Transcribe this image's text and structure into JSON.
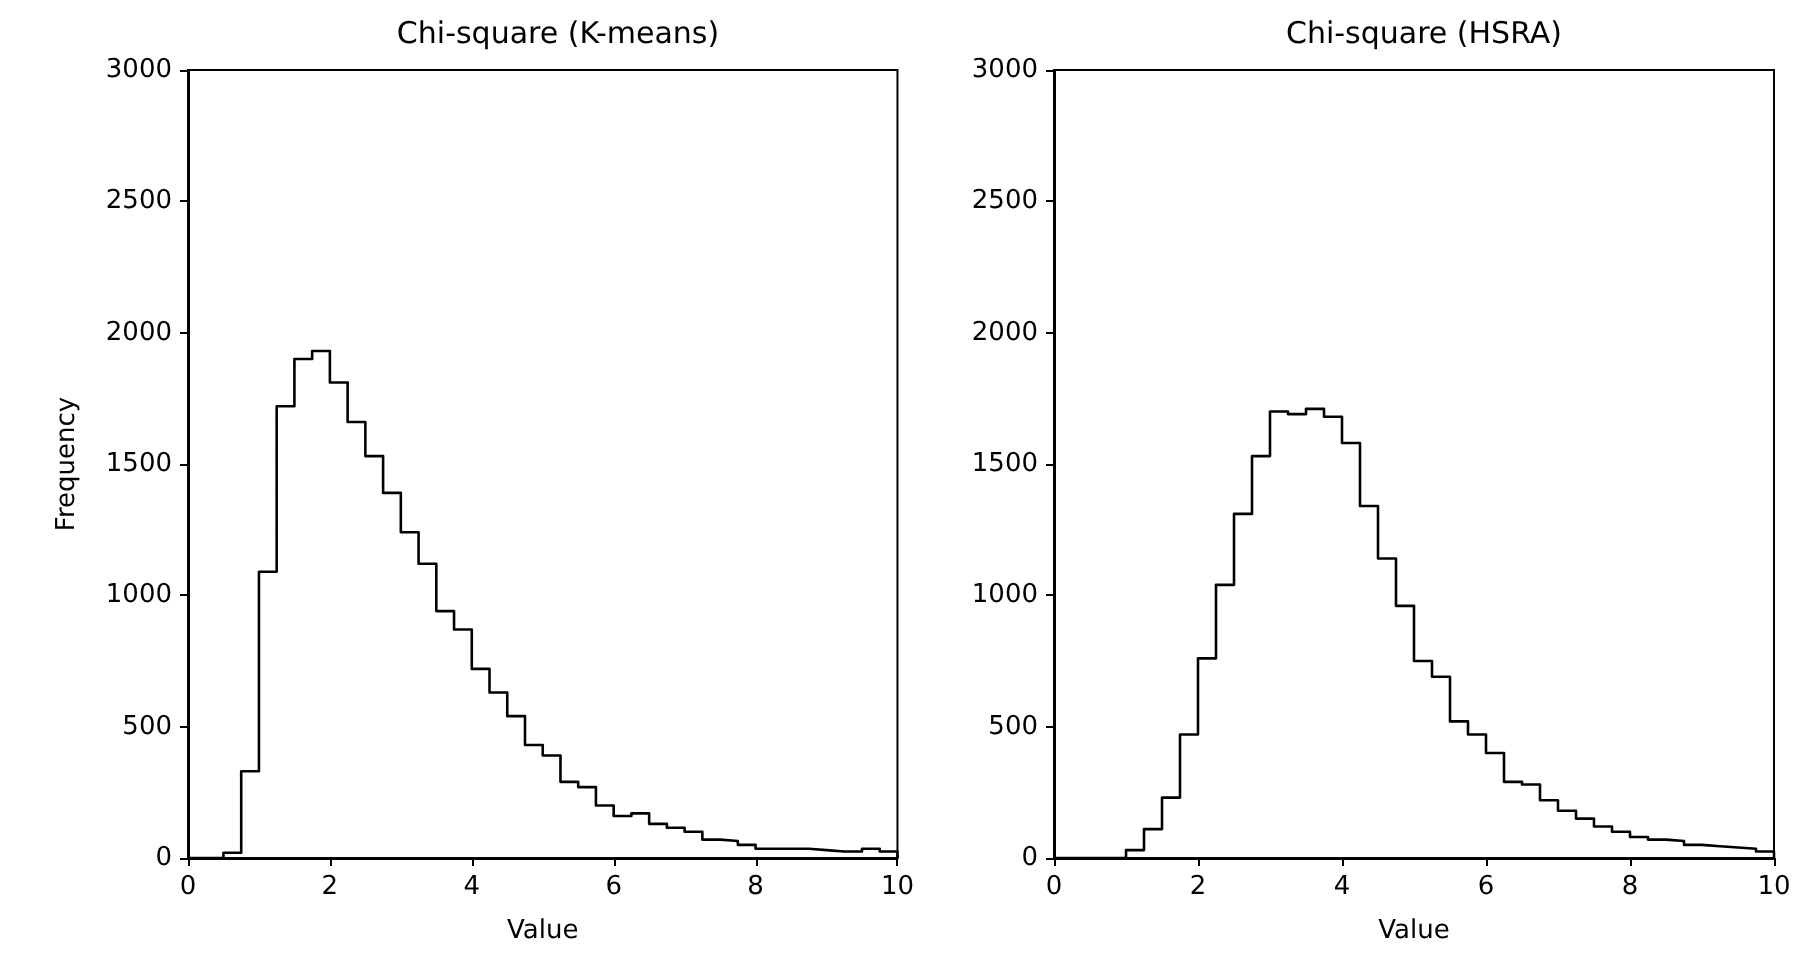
{
  "chart_data": [
    {
      "type": "histogram",
      "title": "Chi-square (K-means)",
      "xlabel": "Value",
      "ylabel": "Frequency",
      "color": "#000000",
      "grid": false,
      "bins": [
        0,
        0.25,
        0.5,
        0.75,
        1,
        1.25,
        1.5,
        1.75,
        2,
        2.25,
        2.5,
        2.75,
        3,
        3.25,
        3.5,
        3.75,
        4,
        4.25,
        4.5,
        4.75,
        5,
        5.25,
        5.5,
        5.75,
        6,
        6.25,
        6.5,
        6.75,
        7,
        7.25,
        7.5,
        7.75,
        8,
        8.25,
        8.5,
        8.75,
        9,
        9.25,
        9.5,
        9.75,
        10
      ],
      "values": [
        0,
        0,
        20,
        330,
        1090,
        1720,
        1900,
        1930,
        1810,
        1660,
        1530,
        1390,
        1240,
        1120,
        940,
        870,
        720,
        630,
        540,
        430,
        390,
        290,
        270,
        200,
        160,
        170,
        130,
        115,
        100,
        70,
        65,
        50,
        35,
        35,
        35,
        30,
        25,
        25,
        35,
        25
      ],
      "xlim": [
        0,
        10
      ],
      "xticks": [
        0,
        2,
        4,
        6,
        8,
        10
      ],
      "ylim": [
        0,
        3000
      ],
      "yticks": [
        0,
        500,
        1000,
        1500,
        2000,
        2500,
        3000
      ]
    },
    {
      "type": "histogram",
      "title": "Chi-square (HSRA)",
      "xlabel": "Value",
      "color": "#000000",
      "grid": false,
      "bins": [
        0,
        0.25,
        0.5,
        0.75,
        1,
        1.25,
        1.5,
        1.75,
        2,
        2.25,
        2.5,
        2.75,
        3,
        3.25,
        3.5,
        3.75,
        4,
        4.25,
        4.5,
        4.75,
        5,
        5.25,
        5.5,
        5.75,
        6,
        6.25,
        6.5,
        6.75,
        7,
        7.25,
        7.5,
        7.75,
        8,
        8.25,
        8.5,
        8.75,
        9,
        9.25,
        9.5,
        9.75,
        10
      ],
      "values": [
        0,
        0,
        0,
        0,
        30,
        110,
        230,
        470,
        760,
        1040,
        1310,
        1530,
        1700,
        1690,
        1710,
        1680,
        1580,
        1340,
        1140,
        960,
        750,
        690,
        520,
        470,
        400,
        290,
        280,
        220,
        180,
        150,
        120,
        100,
        80,
        70,
        65,
        50,
        45,
        40,
        35,
        25
      ],
      "xlim": [
        0,
        10
      ],
      "xticks": [
        0,
        2,
        4,
        6,
        8,
        10
      ],
      "ylim": [
        0,
        3000
      ],
      "yticks": [
        0,
        500,
        1000,
        1500,
        2000,
        2500,
        3000
      ]
    }
  ]
}
